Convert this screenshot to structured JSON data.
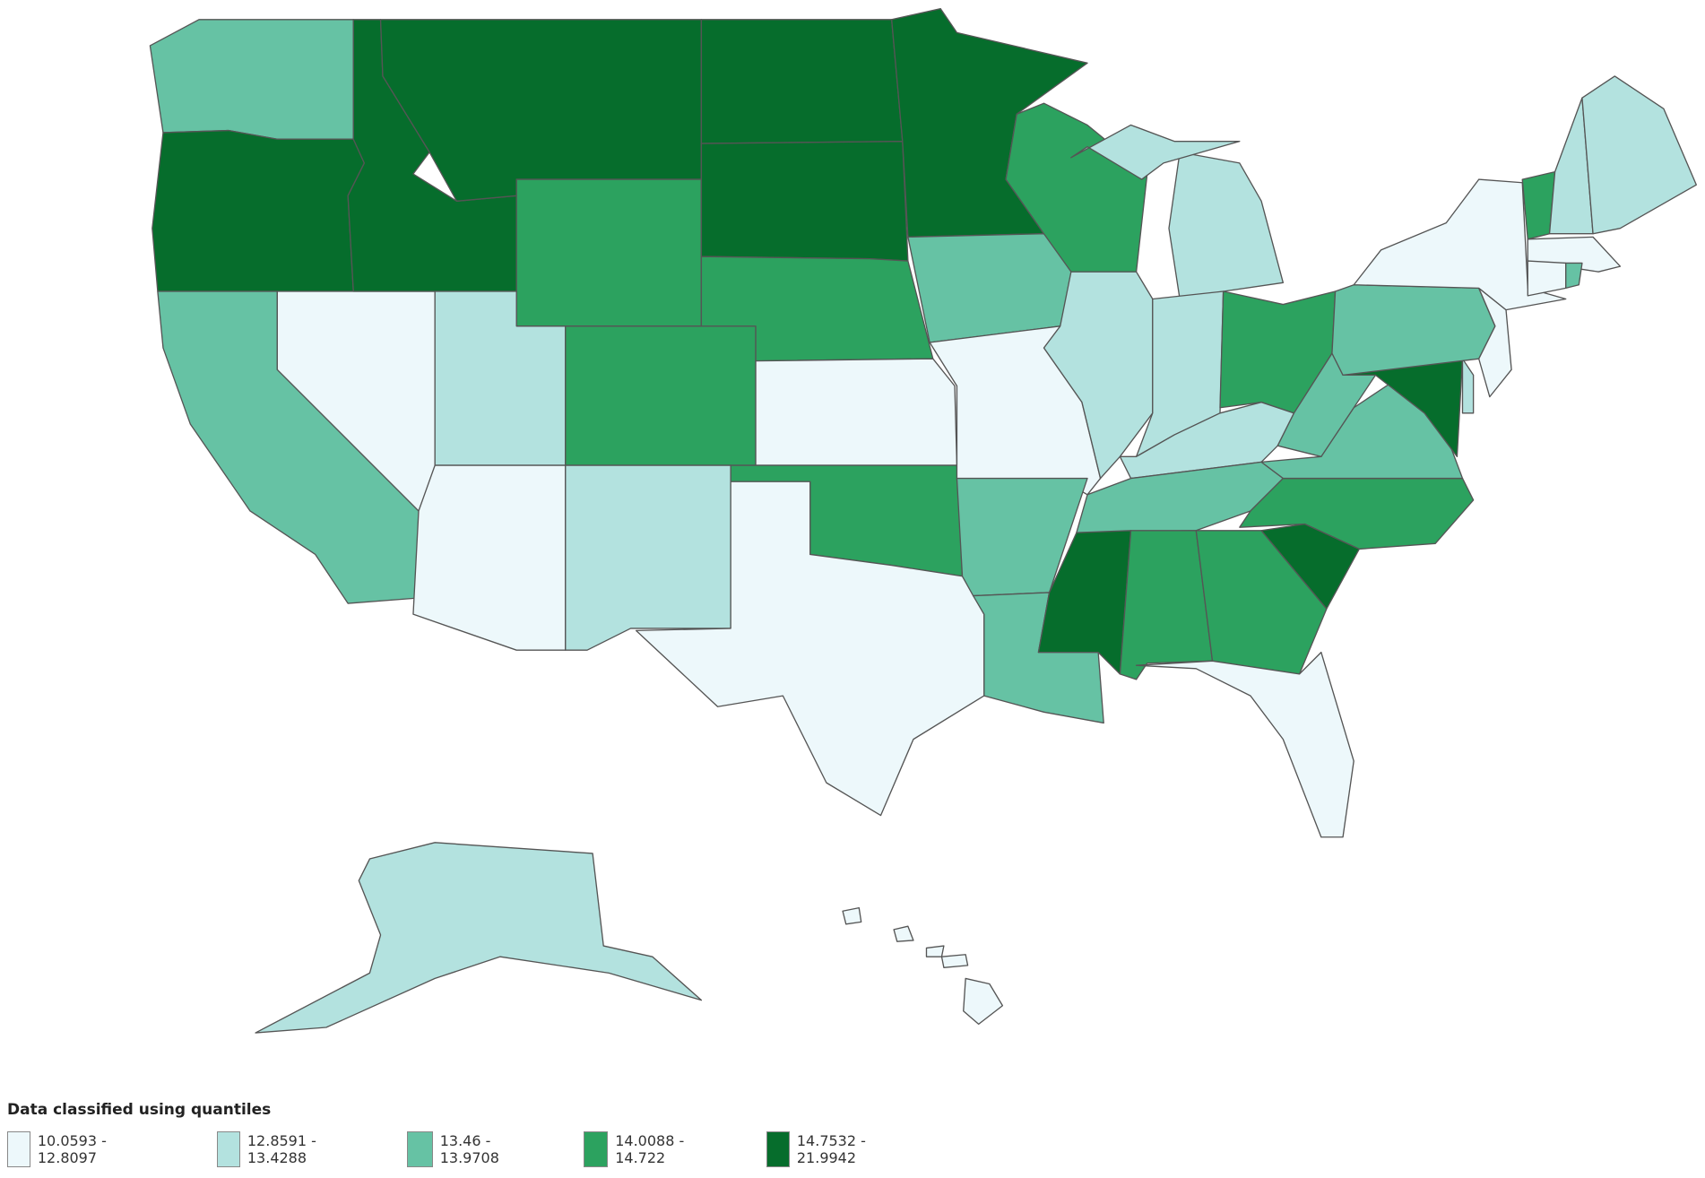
{
  "legend": {
    "title": "Data classified using quantiles",
    "items": [
      {
        "label": "10.0593 - 12.8097",
        "color": "#edf8fb"
      },
      {
        "label": "12.8591 - 13.4288",
        "color": "#b3e2df"
      },
      {
        "label": "13.46 - 13.9708",
        "color": "#66c2a4"
      },
      {
        "label": "14.0088 - 14.722",
        "color": "#2ca25f"
      },
      {
        "label": "14.7532 - 21.9942",
        "color": "#066d2c"
      }
    ]
  },
  "map": {
    "region_classes": [
      2,
      4,
      2,
      0,
      4,
      4,
      3,
      1,
      3,
      0,
      1,
      4,
      4,
      3,
      0,
      3,
      0,
      4,
      2,
      0,
      2,
      2,
      3,
      1,
      1,
      1,
      1,
      3,
      1,
      2,
      4,
      3,
      3,
      0,
      4,
      3,
      2,
      2,
      4,
      1,
      2,
      0,
      0,
      3,
      1,
      1,
      0,
      0,
      2,
      1,
      0,
      0,
      0,
      0,
      0
    ]
  }
}
